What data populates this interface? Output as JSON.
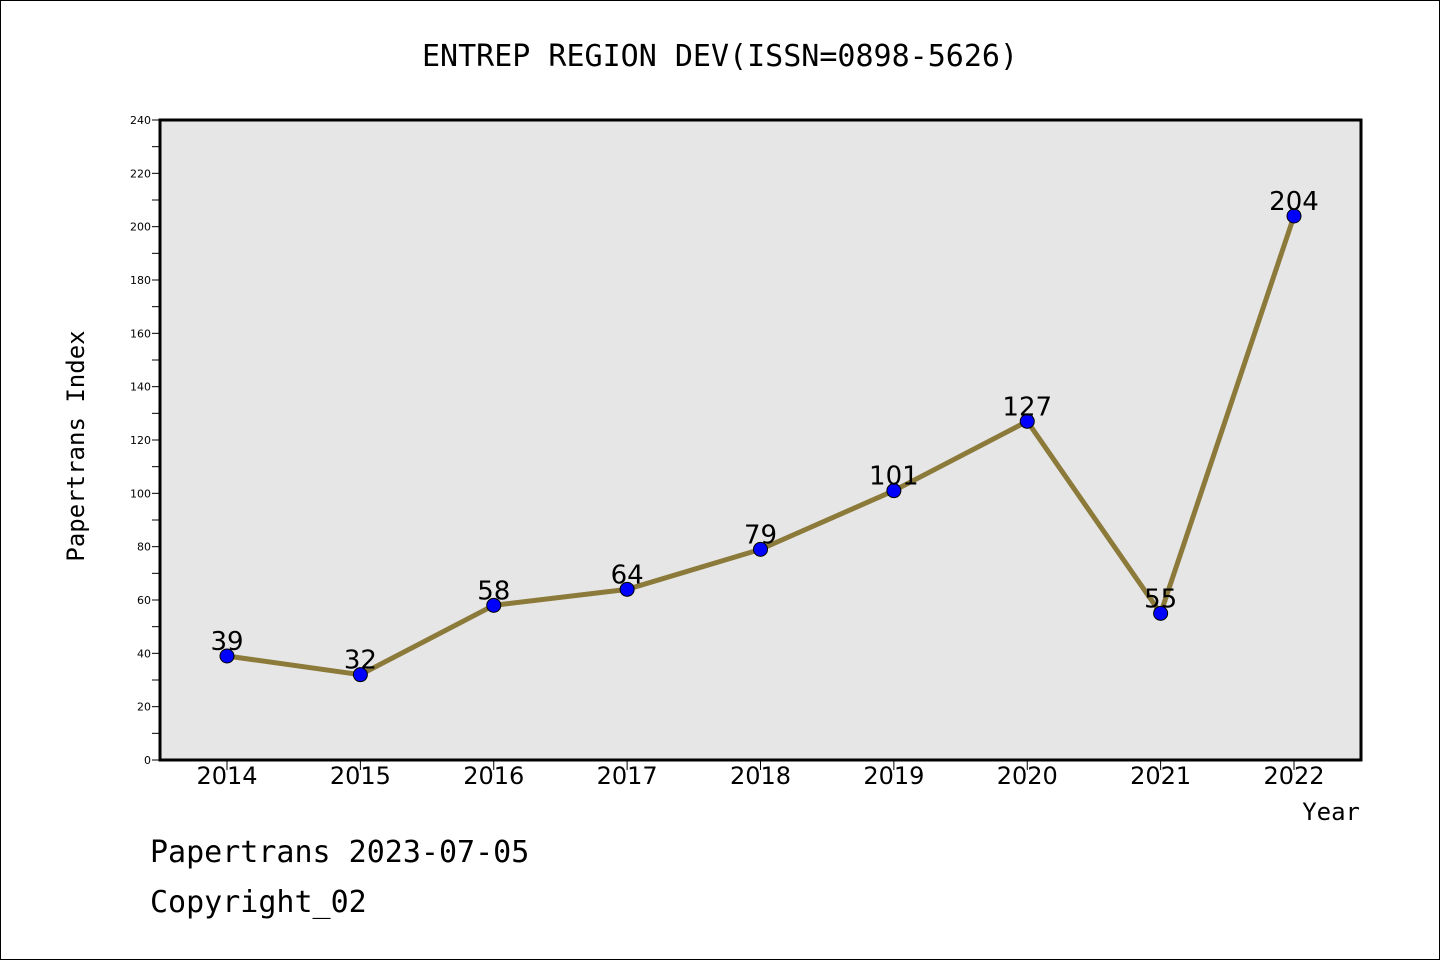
{
  "chart_data": {
    "type": "line",
    "title": "ENTREP REGION DEV(ISSN=0898-5626)",
    "xlabel": "Year",
    "ylabel": "Papertrans Index",
    "categories": [
      "2014",
      "2015",
      "2016",
      "2017",
      "2018",
      "2019",
      "2020",
      "2021",
      "2022"
    ],
    "values": [
      39,
      32,
      58,
      64,
      79,
      101,
      127,
      55,
      204
    ],
    "ylim": [
      0,
      240
    ],
    "yticks": [
      0,
      20,
      40,
      60,
      80,
      100,
      120,
      140,
      160,
      180,
      200,
      220,
      240
    ],
    "grid": false,
    "colors": {
      "line": "#8c7a3a",
      "marker": "#0000ff",
      "plot_bg": "#e6e6e6"
    }
  },
  "footer": {
    "line1": "Papertrans 2023-07-05",
    "line2": "Copyright_02"
  }
}
